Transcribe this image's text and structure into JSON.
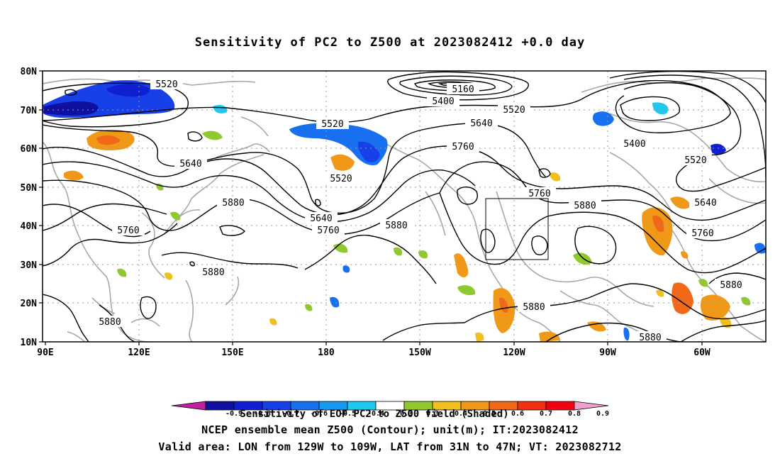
{
  "title": "Sensitivity of PC2 to Z500 at 2023082412 +0.0 day",
  "colorbar": {
    "title": "Sensitivity of EOF PC2 to Z500 field (Shaded)",
    "ticks": [
      "-0.9",
      "-0.8",
      "-0.7",
      "-0.6",
      "-0.5",
      "-0.4",
      "-0.3",
      "0.3",
      "0.4",
      "0.5",
      "0.6",
      "0.7",
      "0.8",
      "0.9"
    ],
    "colors": [
      "#c020a0",
      "#1010a0",
      "#1020d0",
      "#1840e8",
      "#1870f0",
      "#1898f0",
      "#20c8f0",
      "#ffffff",
      "#90c830",
      "#f0c020",
      "#f09818",
      "#f06818",
      "#f03010",
      "#f00010",
      "#f0a0d0"
    ]
  },
  "caption_line1": "NCEP ensemble mean Z500 (Contour); unit(m); IT:2023082412",
  "caption_line2": "Valid area: LON from 129W to 109W, LAT from 31N to 47N; VT: 2023082712",
  "axes": {
    "lat_labels": [
      "80N",
      "70N",
      "60N",
      "50N",
      "40N",
      "30N",
      "20N",
      "10N"
    ],
    "lon_labels": [
      "90E",
      "120E",
      "150E",
      "180",
      "150W",
      "120W",
      "90W",
      "60W"
    ]
  },
  "contour_labels": [
    {
      "id": "c5520a",
      "text": "5520"
    },
    {
      "id": "c5160",
      "text": "5160"
    },
    {
      "id": "c5400a",
      "text": "5400"
    },
    {
      "id": "c5520b",
      "text": "5520"
    },
    {
      "id": "c5520c",
      "text": "5520"
    },
    {
      "id": "c5640a",
      "text": "5640"
    },
    {
      "id": "c5760a",
      "text": "5760"
    },
    {
      "id": "c5640b",
      "text": "5640"
    },
    {
      "id": "c5520d",
      "text": "5520"
    },
    {
      "id": "c5400b",
      "text": "5400"
    },
    {
      "id": "c5520e",
      "text": "5520"
    },
    {
      "id": "c5760b",
      "text": "5760"
    },
    {
      "id": "c5880a",
      "text": "5880"
    },
    {
      "id": "c5640c",
      "text": "5640"
    },
    {
      "id": "c5760c",
      "text": "5760"
    },
    {
      "id": "c5760d",
      "text": "5760"
    },
    {
      "id": "c5880b",
      "text": "5880"
    },
    {
      "id": "c5880c",
      "text": "5880"
    },
    {
      "id": "c5760e",
      "text": "5760"
    },
    {
      "id": "c5640d",
      "text": "5640"
    },
    {
      "id": "c5880d",
      "text": "5880"
    },
    {
      "id": "c5880e",
      "text": "5880"
    },
    {
      "id": "c5880f",
      "text": "5880"
    },
    {
      "id": "c5880g",
      "text": "5880"
    },
    {
      "id": "c5880h",
      "text": "5880"
    }
  ]
}
